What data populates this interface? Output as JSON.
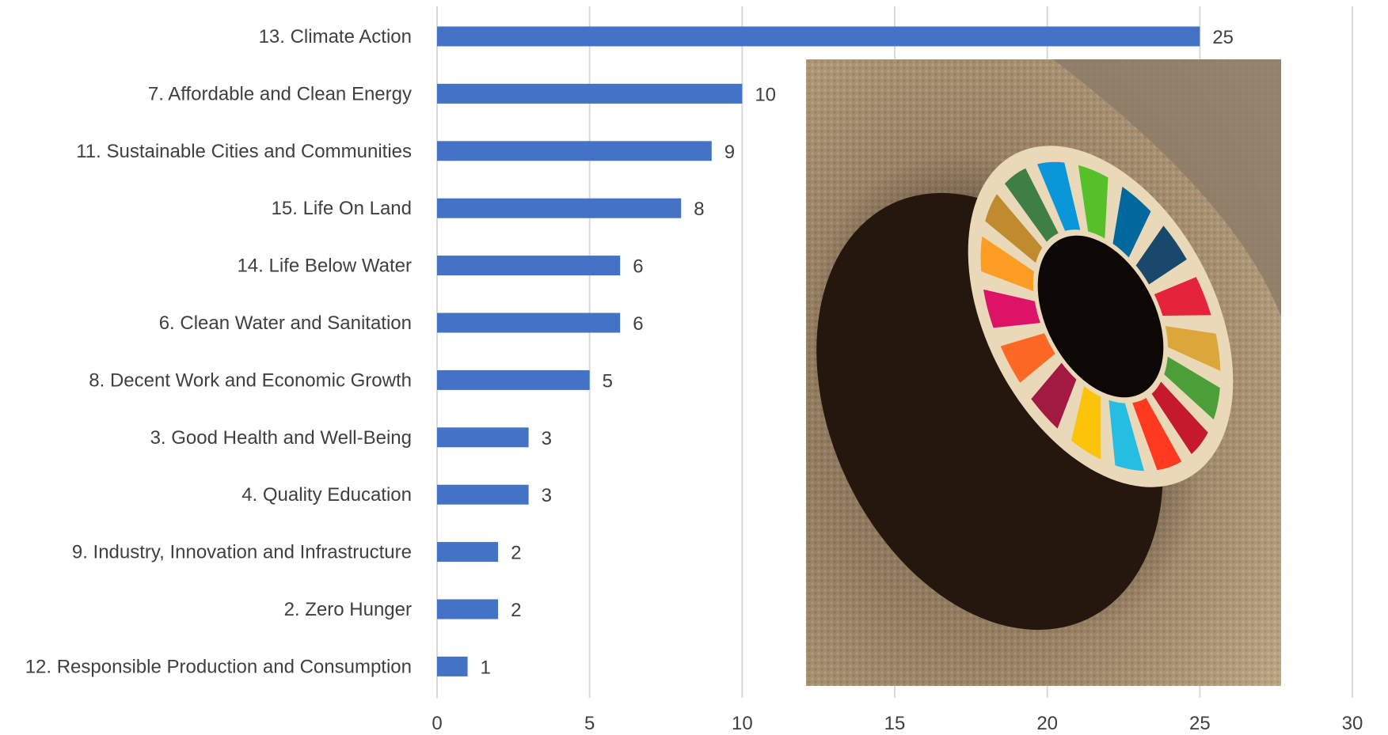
{
  "chart_data": {
    "type": "bar",
    "orientation": "horizontal",
    "categories": [
      "13. Climate Action",
      "7. Affordable and Clean Energy",
      "11. Sustainable Cities and Communities",
      "15. Life On Land",
      "14. Life Below Water",
      "6. Clean Water and Sanitation",
      "8. Decent Work and Economic Growth",
      "3. Good Health and Well-Being",
      "4. Quality Education",
      "9. Industry, Innovation and Infrastructure",
      "2. Zero Hunger",
      "12. Responsible Production and Consumption"
    ],
    "values": [
      25,
      10,
      9,
      8,
      6,
      6,
      5,
      3,
      3,
      2,
      2,
      1
    ],
    "xlim": [
      0,
      30
    ],
    "xticks": [
      0,
      5,
      10,
      15,
      20,
      25,
      30
    ],
    "grid": true,
    "data_labels": true,
    "bar_color": "#4472c4",
    "title": "",
    "xlabel": "",
    "ylabel": ""
  },
  "overlay_image": {
    "icon": "sdg-wheel-pin-photo",
    "wheel_colors": [
      "#e5243b",
      "#dda63a",
      "#4c9f38",
      "#c5192d",
      "#ff3a21",
      "#26bde2",
      "#fcc30b",
      "#a21942",
      "#fd6925",
      "#dd1367",
      "#fd9d24",
      "#bf8b2e",
      "#3f7e44",
      "#0a97d9",
      "#56c02b",
      "#00689d",
      "#19486a"
    ]
  }
}
